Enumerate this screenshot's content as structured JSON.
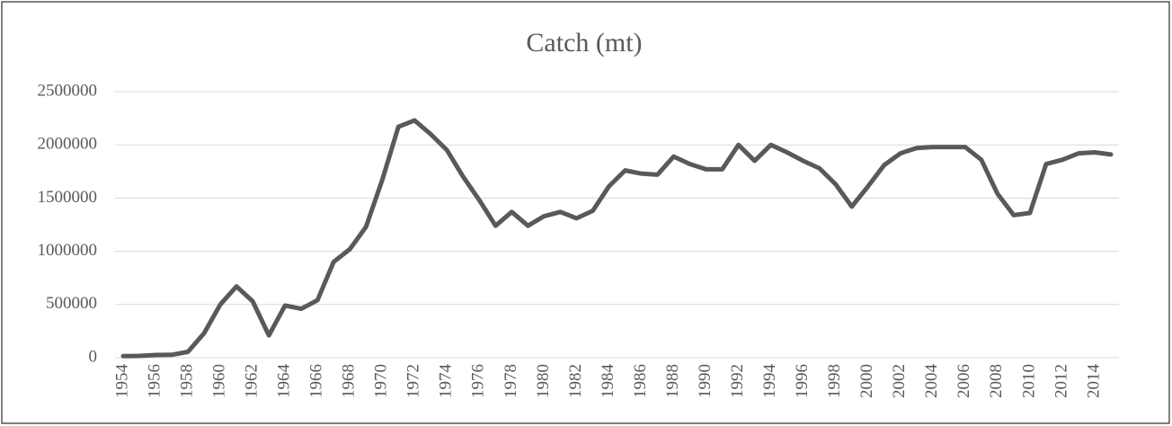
{
  "chart_data": {
    "type": "line",
    "title": "Catch (mt)",
    "x": [
      1954,
      1955,
      1956,
      1957,
      1958,
      1959,
      1960,
      1961,
      1962,
      1963,
      1964,
      1965,
      1966,
      1967,
      1968,
      1969,
      1970,
      1971,
      1972,
      1973,
      1974,
      1975,
      1976,
      1977,
      1978,
      1979,
      1980,
      1981,
      1982,
      1983,
      1984,
      1985,
      1986,
      1987,
      1988,
      1989,
      1990,
      1991,
      1992,
      1993,
      1994,
      1995,
      1996,
      1997,
      1998,
      1999,
      2000,
      2001,
      2002,
      2003,
      2004,
      2005,
      2006,
      2007,
      2008,
      2009,
      2010,
      2011,
      2012,
      2013,
      2014,
      2015
    ],
    "series": [
      {
        "name": "Catch (mt)",
        "color": "#595959",
        "values": [
          15000,
          17000,
          25000,
          27000,
          55000,
          230000,
          500000,
          670000,
          530000,
          210000,
          490000,
          460000,
          540000,
          900000,
          1020000,
          1230000,
          1670000,
          2170000,
          2230000,
          2100000,
          1950000,
          1700000,
          1480000,
          1240000,
          1370000,
          1240000,
          1330000,
          1370000,
          1310000,
          1380000,
          1610000,
          1760000,
          1730000,
          1720000,
          1890000,
          1820000,
          1770000,
          1770000,
          2000000,
          1850000,
          2000000,
          1930000,
          1850000,
          1780000,
          1630000,
          1420000,
          1610000,
          1810000,
          1920000,
          1970000,
          1980000,
          1980000,
          1980000,
          1860000,
          1540000,
          1340000,
          1360000,
          1820000,
          1860000,
          1920000,
          1930000,
          1910000
        ]
      }
    ],
    "xlim": [
      1953.5,
      2015.5
    ],
    "xticks": [
      1954,
      1956,
      1958,
      1960,
      1962,
      1964,
      1966,
      1968,
      1970,
      1972,
      1974,
      1976,
      1978,
      1980,
      1982,
      1984,
      1986,
      1988,
      1990,
      1992,
      1994,
      1996,
      1998,
      2000,
      2002,
      2004,
      2006,
      2008,
      2010,
      2012,
      2014
    ],
    "ylim": [
      0,
      2500000
    ],
    "yticks": [
      0,
      500000,
      1000000,
      1500000,
      2000000,
      2500000
    ],
    "grid": true
  }
}
